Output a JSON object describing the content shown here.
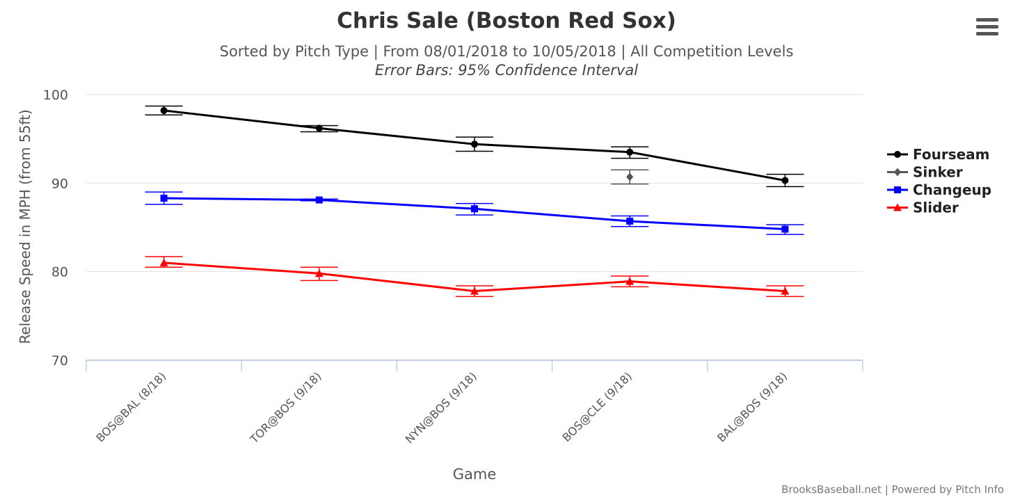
{
  "header": {
    "title": "Chris Sale (Boston Red Sox)",
    "subtitle": "Sorted by Pitch Type | From 08/01/2018 to 10/05/2018 | All Competition Levels",
    "subtitle2": "Error Bars: 95% Confidence Interval"
  },
  "menu": {
    "icon": "hamburger-menu-icon"
  },
  "credits": "BrooksBaseball.net | Powered by Pitch Info",
  "chart_data": {
    "type": "line",
    "xlabel": "Game",
    "ylabel": "Release Speed in MPH (from 55ft)",
    "categories": [
      "BOS@BAL (8/18)",
      "TOR@BOS (9/18)",
      "NYN@BOS (9/18)",
      "BOS@CLE (9/18)",
      "BAL@BOS (9/18)"
    ],
    "ylim": [
      70,
      100
    ],
    "yticks": [
      70,
      80,
      90,
      100
    ],
    "grid": true,
    "legend_position": "right",
    "series": [
      {
        "name": "Fourseam",
        "color": "#000000",
        "marker": "circle",
        "values": [
          98.2,
          96.2,
          94.4,
          93.5,
          90.3
        ],
        "error_low": [
          97.7,
          95.8,
          93.6,
          92.8,
          89.6
        ],
        "error_high": [
          98.7,
          96.5,
          95.2,
          94.1,
          91.0
        ]
      },
      {
        "name": "Sinker",
        "color": "#555555",
        "marker": "diamond",
        "values": [
          null,
          null,
          null,
          90.7,
          null
        ],
        "error_low": [
          null,
          null,
          null,
          89.9,
          null
        ],
        "error_high": [
          null,
          null,
          null,
          91.5,
          null
        ]
      },
      {
        "name": "Changeup",
        "color": "#0000ff",
        "marker": "square",
        "values": [
          88.3,
          88.1,
          87.1,
          85.7,
          84.8
        ],
        "error_low": [
          87.6,
          88.0,
          86.4,
          85.1,
          84.2
        ],
        "error_high": [
          89.0,
          88.2,
          87.7,
          86.3,
          85.3
        ]
      },
      {
        "name": "Slider",
        "color": "#ff0000",
        "marker": "triangle",
        "values": [
          81.0,
          79.8,
          77.8,
          78.9,
          77.8
        ],
        "error_low": [
          80.5,
          79.0,
          77.2,
          78.3,
          77.2
        ],
        "error_high": [
          81.7,
          80.5,
          78.4,
          79.5,
          78.4
        ]
      }
    ]
  }
}
